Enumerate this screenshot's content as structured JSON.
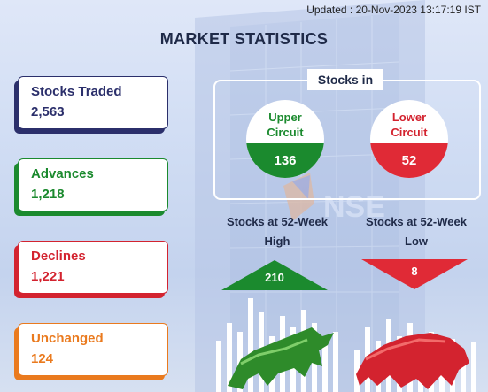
{
  "updated": "Updated : 20-Nov-2023 13:17:19 IST",
  "title": "MARKET STATISTICS",
  "cards": [
    {
      "label": "Stocks Traded",
      "value": "2,563",
      "color": "#2b2f6b"
    },
    {
      "label": "Advances",
      "value": "1,218",
      "color": "#1b8a2e"
    },
    {
      "label": "Declines",
      "value": "1,221",
      "color": "#d3232f"
    },
    {
      "label": "Unchanged",
      "value": "124",
      "color": "#ea7a1e"
    }
  ],
  "stocks_in": {
    "title": "Stocks in",
    "upper": {
      "line1": "Upper",
      "line2": "Circuit",
      "value": "136",
      "color": "#1b8a2e"
    },
    "lower": {
      "line1": "Lower",
      "line2": "Circuit",
      "value": "52",
      "color": "#d3232f"
    }
  },
  "week52": {
    "high": {
      "line1": "Stocks at 52-Week",
      "line2": "High",
      "value": "210",
      "color": "#1b8a2e"
    },
    "low": {
      "line1": "Stocks at 52-Week",
      "line2": "Low",
      "value": "8",
      "color": "#d3232f"
    }
  },
  "icons": [
    "bull-icon",
    "bear-icon",
    "nse-logo-icon"
  ]
}
